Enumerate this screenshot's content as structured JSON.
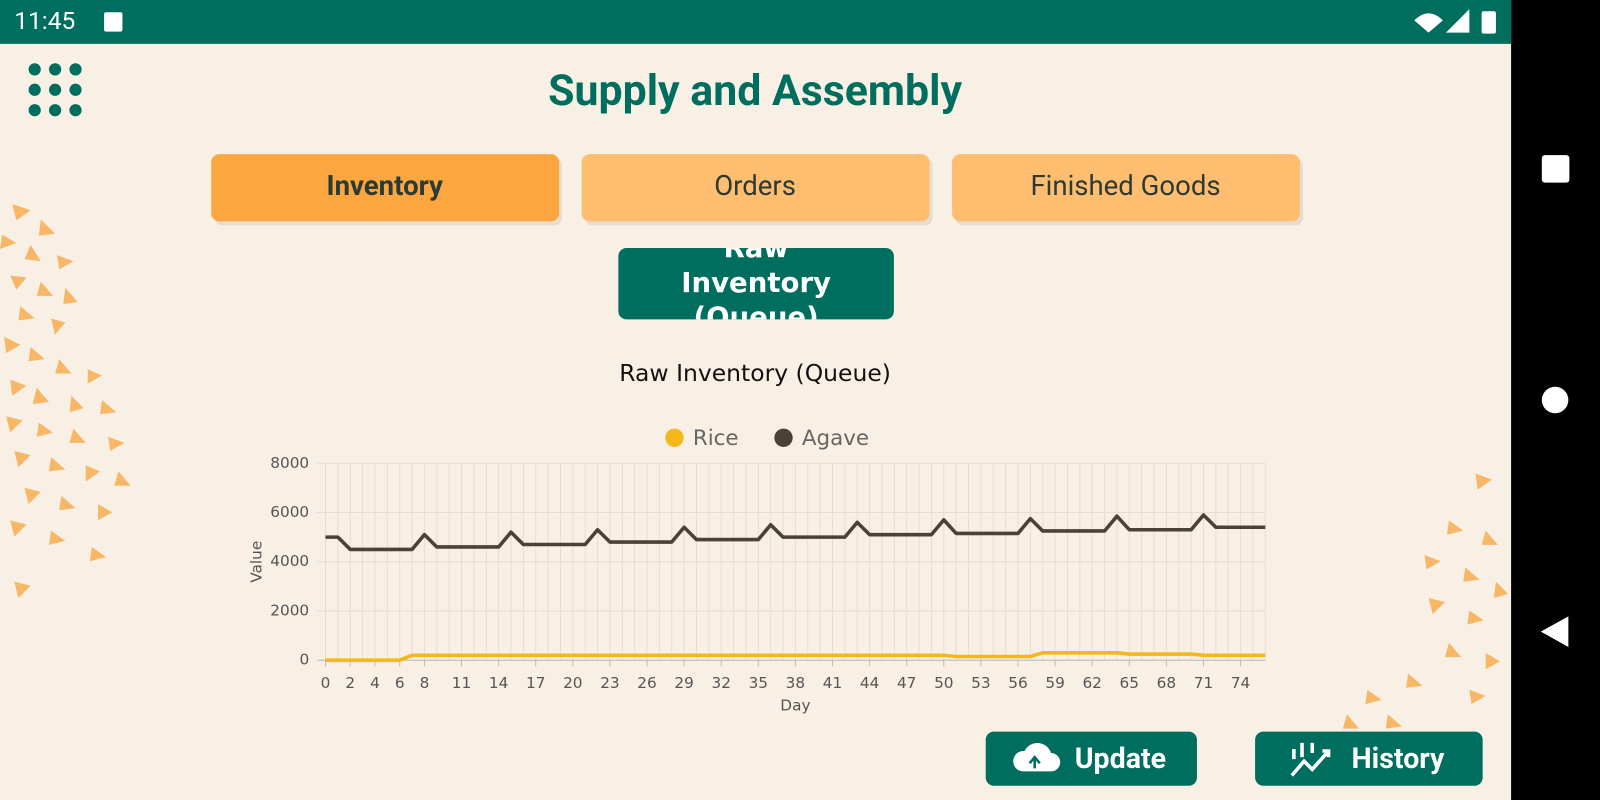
{
  "status_bar": {
    "time": "11:45"
  },
  "header": {
    "title": "Supply and Assembly"
  },
  "tabs": [
    "Inventory",
    "Orders",
    "Finished Goods"
  ],
  "section_button": "Raw Inventory (Queue)",
  "chart_data": {
    "type": "line",
    "title": "Raw Inventory (Queue)",
    "x_label": "Day",
    "y_label": "Value",
    "x": [
      0,
      1,
      2,
      3,
      4,
      5,
      6,
      7,
      8,
      9,
      10,
      11,
      12,
      13,
      14,
      15,
      16,
      17,
      18,
      19,
      20,
      21,
      22,
      23,
      24,
      25,
      26,
      27,
      28,
      29,
      30,
      31,
      32,
      33,
      34,
      35,
      36,
      37,
      38,
      39,
      40,
      41,
      42,
      43,
      44,
      45,
      46,
      47,
      48,
      49,
      50,
      51,
      52,
      53,
      54,
      55,
      56,
      57,
      58,
      59,
      60,
      61,
      62,
      63,
      64,
      65,
      66,
      67,
      68,
      69,
      70,
      71,
      72,
      73,
      74,
      75,
      76
    ],
    "xlim": [
      0,
      76
    ],
    "xticks": [
      0,
      2,
      4,
      6,
      8,
      11,
      14,
      17,
      20,
      23,
      26,
      29,
      32,
      35,
      38,
      41,
      44,
      47,
      50,
      53,
      56,
      59,
      62,
      65,
      68,
      71,
      74
    ],
    "ylim": [
      0,
      8000
    ],
    "yticks": [
      0,
      2000,
      4000,
      6000,
      8000
    ],
    "grid": true,
    "legend": "top",
    "series": [
      {
        "name": "Rice",
        "color": "#f4b81c",
        "values": [
          0,
          0,
          0,
          0,
          0,
          0,
          0,
          200,
          200,
          200,
          200,
          200,
          200,
          200,
          200,
          200,
          200,
          200,
          200,
          200,
          200,
          200,
          200,
          200,
          200,
          200,
          200,
          200,
          200,
          200,
          200,
          200,
          200,
          200,
          200,
          200,
          200,
          200,
          200,
          200,
          200,
          200,
          200,
          200,
          200,
          200,
          200,
          200,
          200,
          200,
          200,
          150,
          150,
          150,
          150,
          150,
          150,
          150,
          300,
          300,
          300,
          300,
          300,
          300,
          300,
          250,
          250,
          250,
          250,
          250,
          250,
          200,
          200,
          200,
          200,
          200,
          200
        ]
      },
      {
        "name": "Agave",
        "color": "#4a4236",
        "values": [
          5000,
          5000,
          4500,
          4500,
          4500,
          4500,
          4500,
          4500,
          5100,
          4600,
          4600,
          4600,
          4600,
          4600,
          4600,
          5200,
          4700,
          4700,
          4700,
          4700,
          4700,
          4700,
          5300,
          4800,
          4800,
          4800,
          4800,
          4800,
          4800,
          5400,
          4900,
          4900,
          4900,
          4900,
          4900,
          4900,
          5500,
          5000,
          5000,
          5000,
          5000,
          5000,
          5000,
          5600,
          5100,
          5100,
          5100,
          5100,
          5100,
          5100,
          5700,
          5150,
          5150,
          5150,
          5150,
          5150,
          5150,
          5750,
          5250,
          5250,
          5250,
          5250,
          5250,
          5250,
          5850,
          5300,
          5300,
          5300,
          5300,
          5300,
          5300,
          5900,
          5400,
          5400,
          5400,
          5400,
          5400
        ]
      }
    ]
  },
  "actions": [
    "Update",
    "History"
  ]
}
